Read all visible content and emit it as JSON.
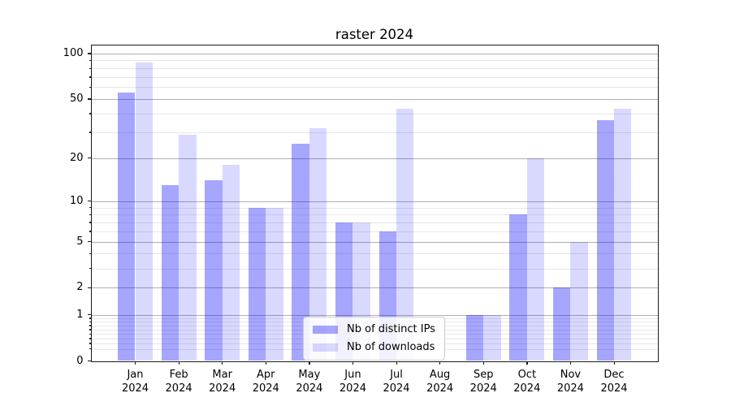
{
  "chart_data": {
    "type": "bar",
    "title": "raster 2024",
    "categories": [
      "Jan",
      "Feb",
      "Mar",
      "Apr",
      "May",
      "Jun",
      "Jul",
      "Aug",
      "Sep",
      "Oct",
      "Nov",
      "Dec"
    ],
    "category_year": "2024",
    "series": [
      {
        "name": "Nb of distinct IPs",
        "color": "rgba(0,0,255,0.35)",
        "values": [
          55,
          13,
          14,
          9,
          25,
          7,
          6,
          0,
          1,
          8,
          2,
          36
        ]
      },
      {
        "name": "Nb of downloads",
        "color": "rgba(0,0,255,0.15)",
        "values": [
          87,
          29,
          18,
          9,
          32,
          7,
          43,
          0,
          1,
          20,
          5,
          43
        ]
      }
    ],
    "yscale": "log1p",
    "ylim": [
      0,
      113
    ],
    "yticks_major": [
      0,
      1,
      2,
      5,
      10,
      20,
      50,
      100
    ],
    "yticks_minor": [
      0.2,
      0.3,
      0.4,
      0.5,
      0.6,
      0.7,
      0.8,
      0.9,
      3,
      4,
      6,
      7,
      8,
      9,
      30,
      40,
      60,
      70,
      80,
      90
    ],
    "grid": true,
    "legend_position": "lower-center",
    "bar_group_width": 0.8
  },
  "colors": {
    "grid_major": "#b0b0b0",
    "grid_minor": "#e7e7e7",
    "axis": "#1a1a1a",
    "background": "#ffffff"
  }
}
